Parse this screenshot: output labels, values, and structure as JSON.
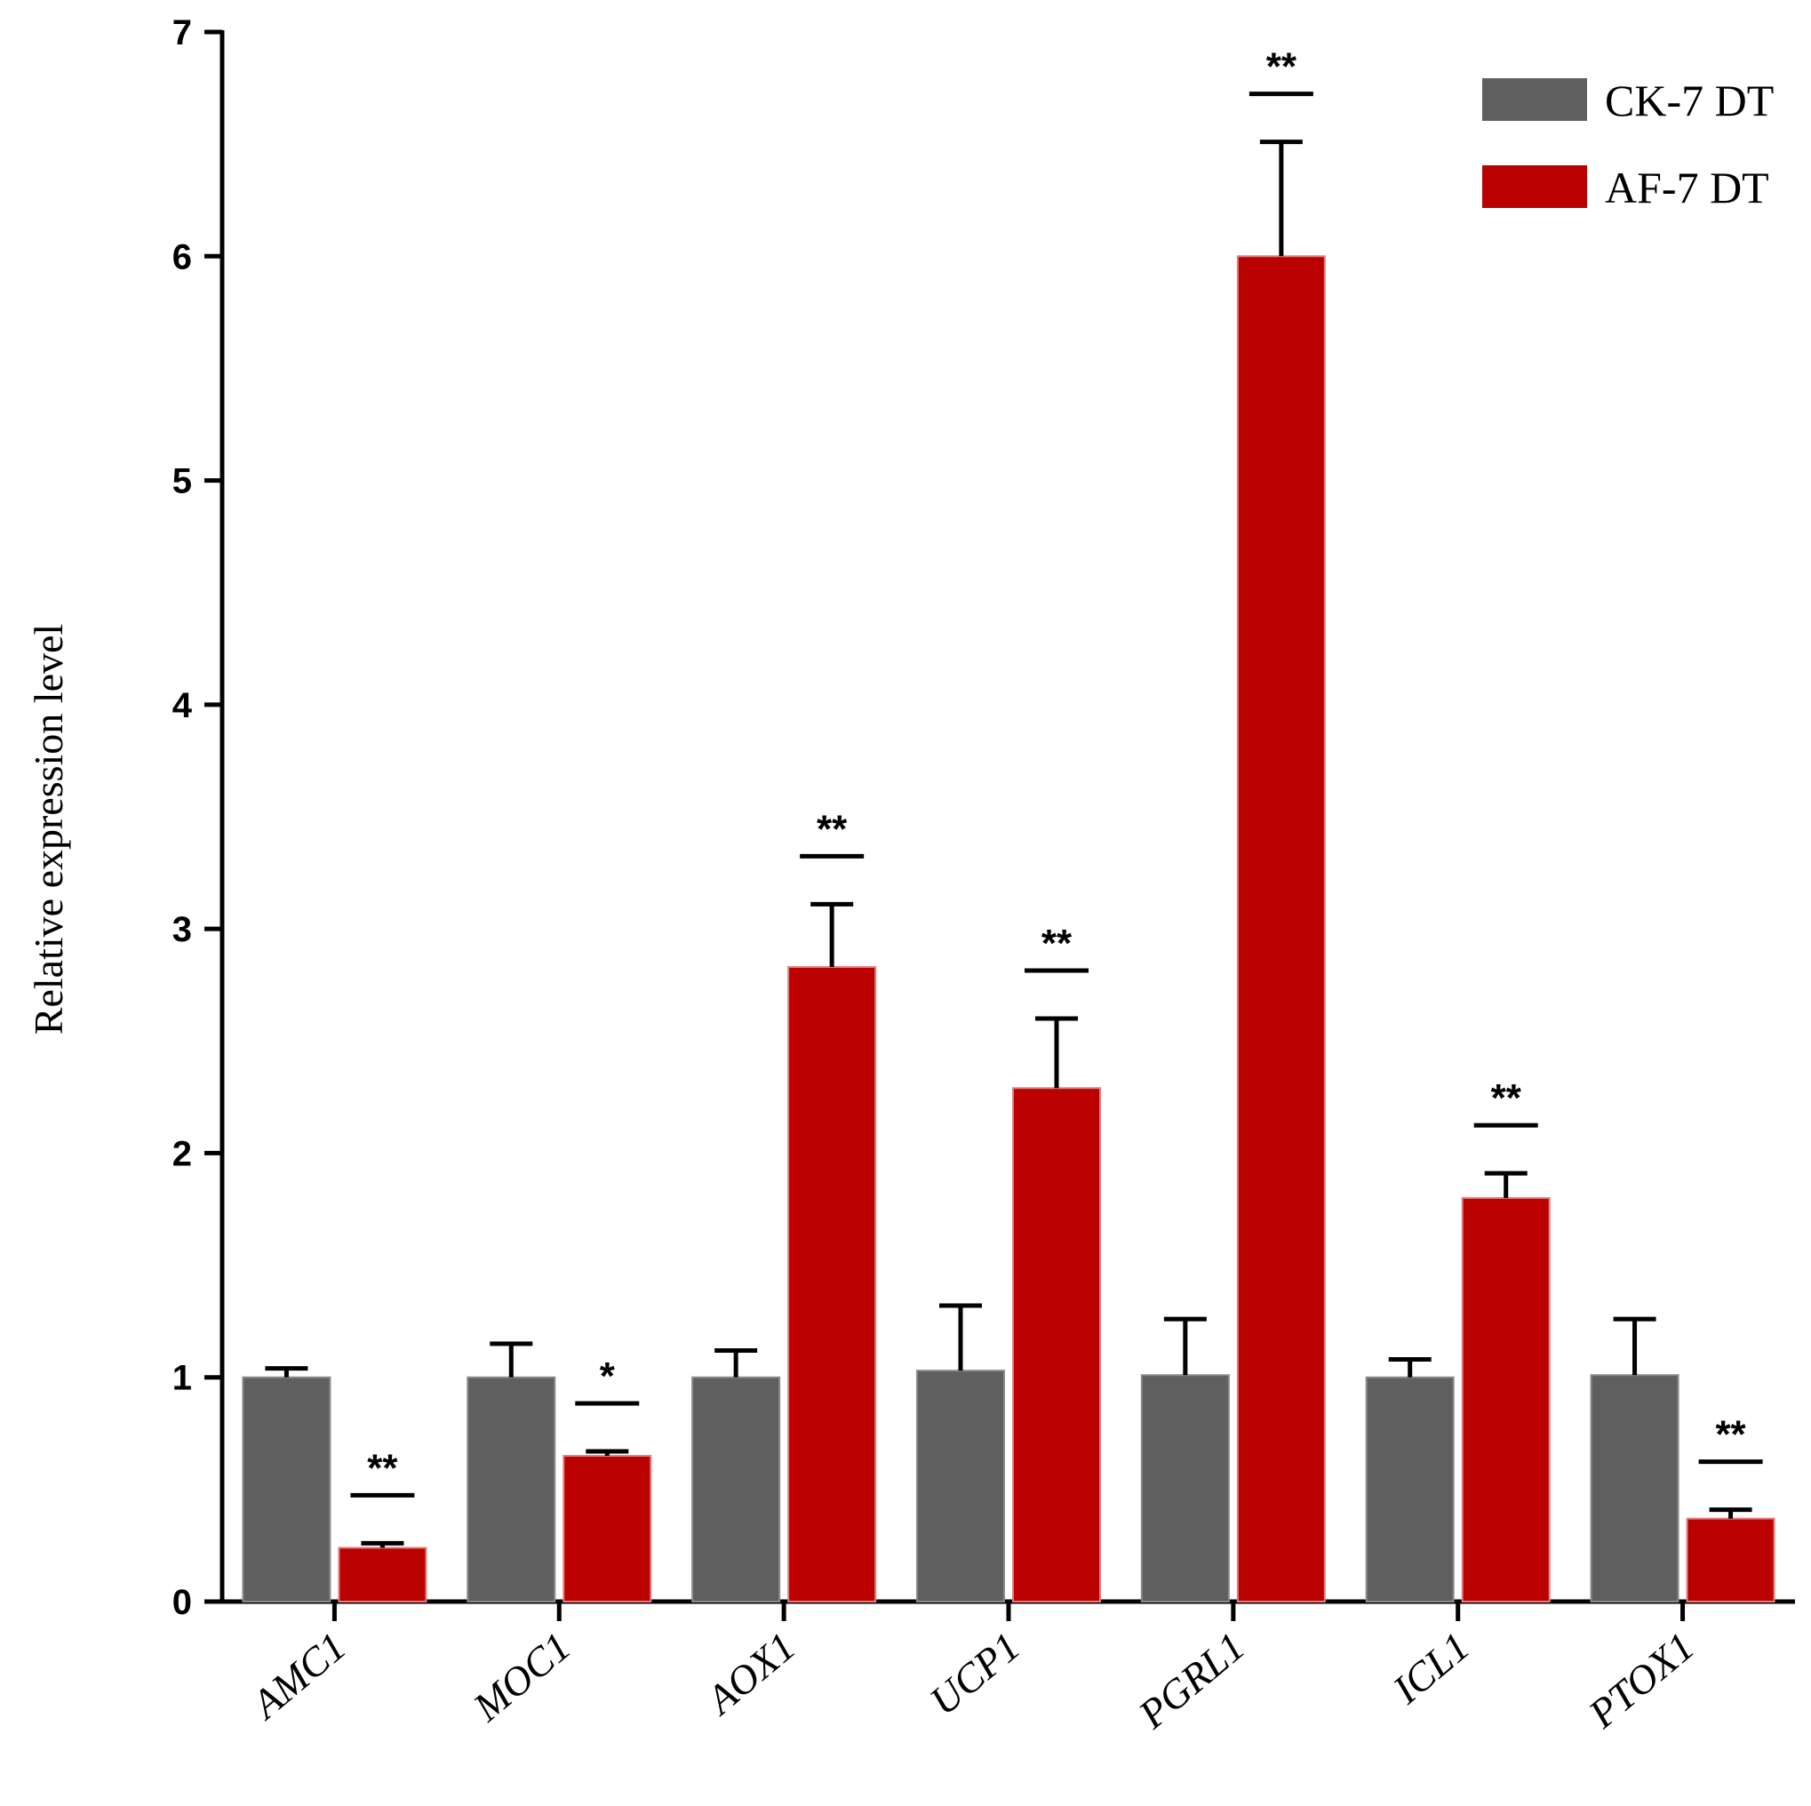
{
  "chart_data": {
    "type": "bar",
    "title": "",
    "xlabel": "",
    "ylabel": "Relative expression level",
    "ylim": [
      0,
      7
    ],
    "yticks": [
      "0",
      "1",
      "2",
      "3",
      "4",
      "5",
      "6",
      "7"
    ],
    "categories": [
      "AMC1",
      "MOC1",
      "AOX1",
      "UCP1",
      "PGRL1",
      "ICL1",
      "PTOX1"
    ],
    "series": [
      {
        "name": "CK-7 DT",
        "color": "#5f5f5f",
        "values": [
          1.0,
          1.0,
          1.0,
          1.03,
          1.01,
          1.0,
          1.01
        ],
        "errors": [
          0.04,
          0.15,
          0.12,
          0.29,
          0.25,
          0.08,
          0.25
        ]
      },
      {
        "name": "AF-7 DT",
        "color": "#bb0000",
        "values": [
          0.24,
          0.65,
          2.83,
          2.29,
          6.0,
          1.8,
          0.37
        ],
        "errors": [
          0.02,
          0.02,
          0.28,
          0.31,
          0.51,
          0.11,
          0.04
        ]
      }
    ],
    "significance": [
      "**",
      "*",
      "**",
      "**",
      "**",
      "**",
      "**"
    ],
    "legend_position": "top-right"
  }
}
